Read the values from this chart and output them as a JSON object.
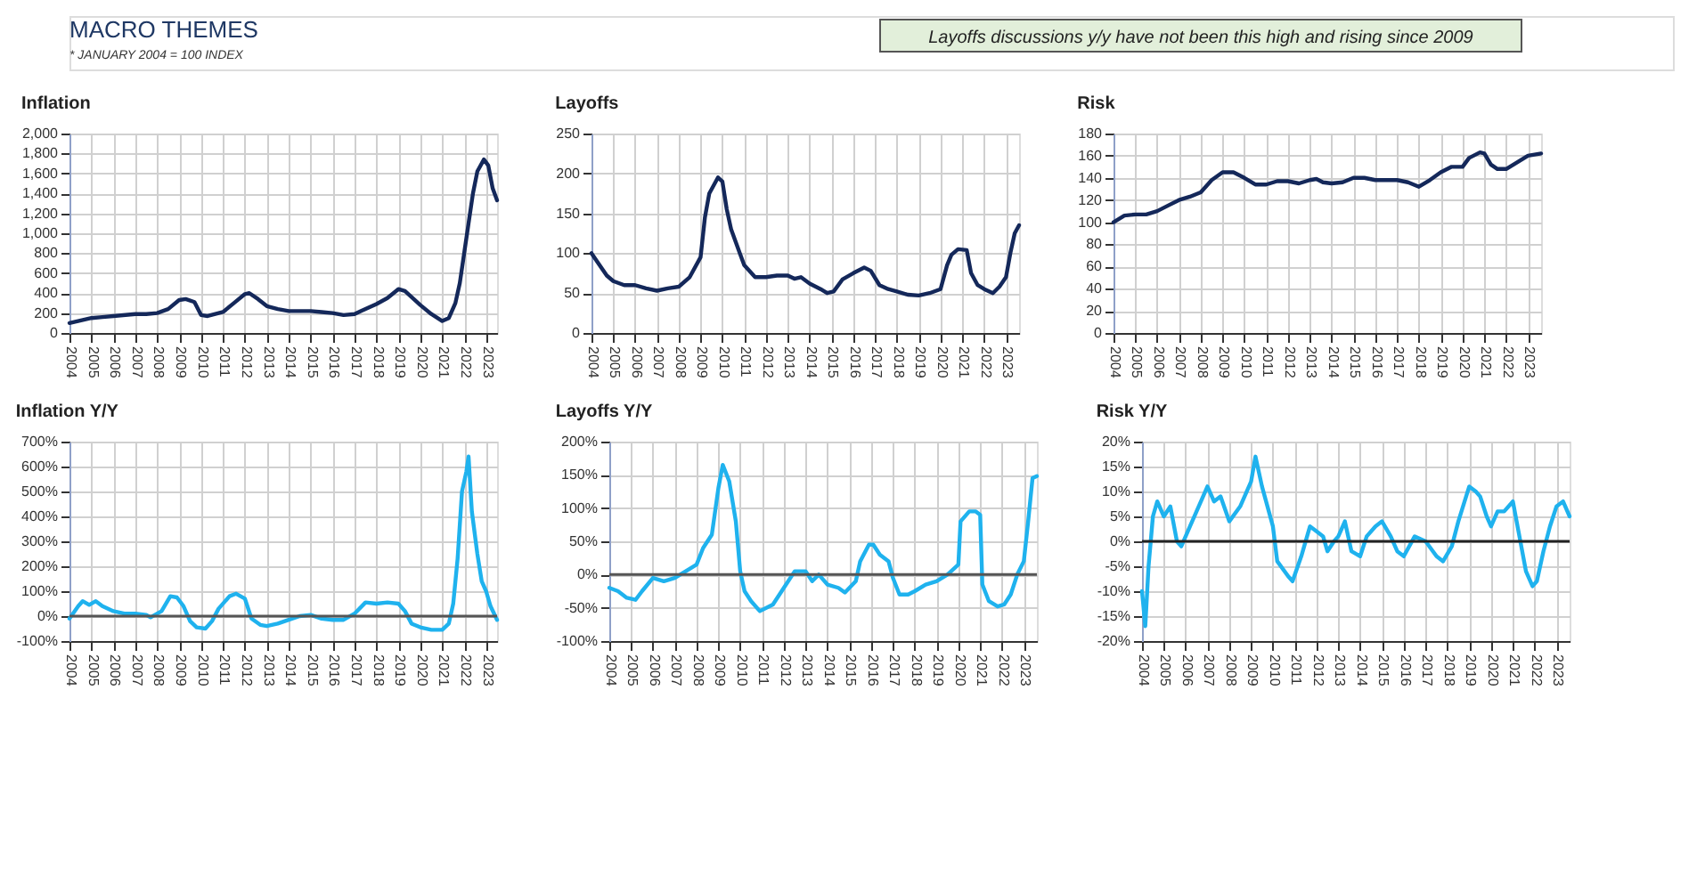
{
  "chart_data": [
    {
      "type": "line",
      "title": "Inflation",
      "annotations": [
        "MACRO THEMES",
        "* JANUARY 2004 = 100 INDEX"
      ],
      "xlim": [
        2004,
        2023.5
      ],
      "xticks": [
        2004,
        2005,
        2006,
        2007,
        2008,
        2009,
        2010,
        2011,
        2012,
        2013,
        2014,
        2015,
        2016,
        2017,
        2018,
        2019,
        2020,
        2021,
        2022,
        2023
      ],
      "ylim": [
        0,
        2000
      ],
      "yticks": [
        0,
        200,
        400,
        600,
        800,
        {
          "value": 1000,
          "label": "1,000"
        },
        {
          "value": 1200,
          "label": "1,200"
        },
        {
          "value": 1400,
          "label": "1,400"
        },
        {
          "value": 1600,
          "label": "1,600"
        },
        {
          "value": 1800,
          "label": "1,800"
        },
        {
          "value": 2000,
          "label": "2,000"
        }
      ],
      "grid": true,
      "series": [
        {
          "color": "#14285a",
          "x": [
            2004,
            2005,
            2005.5,
            2006,
            2007,
            2007.5,
            2008,
            2008.5,
            2009,
            2009.3,
            2009.7,
            2010,
            2010.3,
            2011,
            2011.5,
            2012,
            2012.2,
            2012.6,
            2013,
            2013.5,
            2014,
            2015,
            2015.5,
            2016,
            2016.5,
            2017,
            2017.3,
            2018,
            2018.5,
            2019,
            2019.3,
            2019.7,
            2020,
            2020.5,
            2021,
            2021.3,
            2021.6,
            2021.8,
            2022,
            2022.2,
            2022.4,
            2022.6,
            2022.9,
            2023.1,
            2023.3,
            2023.5
          ],
          "values": [
            100,
            150,
            160,
            170,
            190,
            190,
            200,
            240,
            330,
            340,
            310,
            180,
            170,
            210,
            300,
            390,
            400,
            340,
            270,
            240,
            220,
            220,
            210,
            200,
            180,
            190,
            220,
            290,
            350,
            440,
            420,
            340,
            280,
            190,
            120,
            150,
            300,
            500,
            800,
            1100,
            1400,
            1620,
            1740,
            1680,
            1450,
            1330
          ]
        }
      ]
    },
    {
      "type": "line",
      "title": "Layoffs",
      "xlim": [
        2004,
        2023.6
      ],
      "xticks": [
        2004,
        2005,
        2006,
        2007,
        2008,
        2009,
        2010,
        2011,
        2012,
        2013,
        2014,
        2015,
        2016,
        2017,
        2018,
        2019,
        2020,
        2021,
        2022,
        2023
      ],
      "ylim": [
        0,
        250
      ],
      "yticks": [
        0,
        50,
        100,
        150,
        200,
        250
      ],
      "grid": true,
      "series": [
        {
          "color": "#14285a",
          "x": [
            2004,
            2004.3,
            2004.7,
            2005,
            2005.5,
            2006,
            2006.5,
            2007,
            2007.5,
            2008,
            2008.5,
            2009,
            2009.2,
            2009.4,
            2009.8,
            2010,
            2010.2,
            2010.4,
            2010.8,
            2011,
            2011.5,
            2012,
            2012.5,
            2013,
            2013.3,
            2013.6,
            2014,
            2014.5,
            2014.8,
            2015.1,
            2015.5,
            2016,
            2016.5,
            2016.8,
            2017.2,
            2017.6,
            2018,
            2018.5,
            2019,
            2019.5,
            2020,
            2020.3,
            2020.5,
            2020.8,
            2021.2,
            2021.4,
            2021.7,
            2022,
            2022.4,
            2022.7,
            2023,
            2023.2,
            2023.4,
            2023.6
          ],
          "values": [
            100,
            88,
            72,
            65,
            60,
            60,
            56,
            53,
            56,
            58,
            70,
            95,
            145,
            175,
            195,
            190,
            155,
            130,
            100,
            85,
            70,
            70,
            72,
            72,
            68,
            70,
            62,
            55,
            50,
            52,
            67,
            75,
            82,
            78,
            60,
            55,
            52,
            48,
            47,
            50,
            55,
            85,
            98,
            105,
            104,
            75,
            60,
            55,
            50,
            58,
            70,
            100,
            125,
            135
          ]
        }
      ]
    },
    {
      "type": "line",
      "title": "Risk",
      "xlim": [
        2004,
        2023.6
      ],
      "xticks": [
        2004,
        2005,
        2006,
        2007,
        2008,
        2009,
        2010,
        2011,
        2012,
        2013,
        2014,
        2015,
        2016,
        2017,
        2018,
        2019,
        2020,
        2021,
        2022,
        2023
      ],
      "ylim": [
        0,
        180
      ],
      "yticks": [
        0,
        20,
        40,
        60,
        80,
        100,
        120,
        140,
        160,
        180
      ],
      "grid": true,
      "series": [
        {
          "color": "#14285a",
          "x": [
            2004,
            2004.5,
            2005,
            2005.5,
            2006,
            2006.5,
            2007,
            2007.5,
            2008,
            2008.5,
            2009,
            2009.5,
            2010,
            2010.5,
            2011,
            2011.5,
            2012,
            2012.5,
            2013,
            2013.3,
            2013.6,
            2014,
            2014.5,
            2015,
            2015.5,
            2016,
            2016.5,
            2017,
            2017.5,
            2018,
            2018.5,
            2019,
            2019.5,
            2020,
            2020.3,
            2020.8,
            2021,
            2021.3,
            2021.6,
            2022,
            2022.5,
            2023,
            2023.6
          ],
          "values": [
            100,
            106,
            107,
            107,
            110,
            115,
            120,
            123,
            127,
            138,
            145,
            145,
            140,
            134,
            134,
            137,
            137,
            135,
            138,
            139,
            136,
            135,
            136,
            140,
            140,
            138,
            138,
            138,
            136,
            132,
            138,
            145,
            150,
            150,
            158,
            163,
            162,
            152,
            148,
            148,
            154,
            160,
            162
          ]
        }
      ]
    },
    {
      "type": "line",
      "title": "Inflation Y/Y",
      "xlim": [
        2004,
        2023.5
      ],
      "xticks": [
        2004,
        2005,
        2006,
        2007,
        2008,
        2009,
        2010,
        2011,
        2012,
        2013,
        2014,
        2015,
        2016,
        2017,
        2018,
        2019,
        2020,
        2021,
        2022,
        2023
      ],
      "ylim": [
        -100,
        700
      ],
      "yticks": [
        {
          "value": -100,
          "label": "-100%"
        },
        {
          "value": 0,
          "label": "0%"
        },
        {
          "value": 100,
          "label": "100%"
        },
        {
          "value": 200,
          "label": "200%"
        },
        {
          "value": 300,
          "label": "300%"
        },
        {
          "value": 400,
          "label": "400%"
        },
        {
          "value": 500,
          "label": "500%"
        },
        {
          "value": 600,
          "label": "600%"
        },
        {
          "value": 700,
          "label": "700%"
        }
      ],
      "grid": true,
      "ref_lines": [
        {
          "axis": "y",
          "value": 0,
          "color": "#555555"
        }
      ],
      "series": [
        {
          "color": "#1fb2ee",
          "x": [
            2004,
            2004.4,
            2004.6,
            2004.9,
            2005.2,
            2005.5,
            2006,
            2006.5,
            2007,
            2007.5,
            2007.7,
            2008.2,
            2008.6,
            2008.9,
            2009.2,
            2009.5,
            2009.8,
            2010.2,
            2010.5,
            2010.8,
            2011.3,
            2011.6,
            2012,
            2012.3,
            2012.7,
            2013,
            2013.5,
            2014,
            2014.5,
            2015,
            2015.5,
            2016,
            2016.5,
            2017,
            2017.5,
            2018,
            2018.5,
            2019,
            2019.3,
            2019.6,
            2020,
            2020.5,
            2021,
            2021.3,
            2021.5,
            2021.7,
            2021.9,
            2022.1,
            2022.2,
            2022.35,
            2022.6,
            2022.8,
            2023,
            2023.2,
            2023.5
          ],
          "values": [
            -10,
            40,
            60,
            45,
            60,
            40,
            20,
            10,
            10,
            5,
            -5,
            20,
            80,
            75,
            40,
            -20,
            -45,
            -50,
            -20,
            30,
            80,
            90,
            70,
            -10,
            -35,
            -40,
            -30,
            -15,
            0,
            5,
            -10,
            -15,
            -15,
            10,
            55,
            50,
            55,
            50,
            20,
            -30,
            -45,
            -55,
            -55,
            -30,
            50,
            230,
            500,
            580,
            640,
            420,
            250,
            140,
            100,
            40,
            -15
          ]
        }
      ]
    },
    {
      "type": "line",
      "title": "Layoffs Y/Y",
      "annotations": [
        "Layoffs discussions y/y have not been this high and rising since 2009"
      ],
      "xlim": [
        2004,
        2023.6
      ],
      "xticks": [
        2004,
        2005,
        2006,
        2007,
        2008,
        2009,
        2010,
        2011,
        2012,
        2013,
        2014,
        2015,
        2016,
        2017,
        2018,
        2019,
        2020,
        2021,
        2022,
        2023
      ],
      "ylim": [
        -100,
        200
      ],
      "yticks": [
        {
          "value": -100,
          "label": "-100%"
        },
        {
          "value": -50,
          "label": "-50%"
        },
        {
          "value": 0,
          "label": "0%"
        },
        {
          "value": 50,
          "label": "50%"
        },
        {
          "value": 100,
          "label": "100%"
        },
        {
          "value": 150,
          "label": "150%"
        },
        {
          "value": 200,
          "label": "200%"
        }
      ],
      "grid": true,
      "ref_lines": [
        {
          "axis": "y",
          "value": 0,
          "color": "#555555"
        }
      ],
      "series": [
        {
          "color": "#1fb2ee",
          "x": [
            2004,
            2004.4,
            2004.8,
            2005.2,
            2005.5,
            2006,
            2006.5,
            2007,
            2007.5,
            2008,
            2008.3,
            2008.7,
            2009,
            2009.2,
            2009.5,
            2009.8,
            2010,
            2010.2,
            2010.5,
            2010.9,
            2011.5,
            2012,
            2012.5,
            2013,
            2013.3,
            2013.6,
            2014,
            2014.5,
            2014.8,
            2015.3,
            2015.5,
            2015.9,
            2016.1,
            2016.4,
            2016.8,
            2017,
            2017.3,
            2017.7,
            2018,
            2018.5,
            2019,
            2019.5,
            2020,
            2020.1,
            2020.5,
            2020.8,
            2021,
            2021.1,
            2021.4,
            2021.8,
            2022.1,
            2022.4,
            2022.7,
            2023,
            2023.2,
            2023.4,
            2023.6
          ],
          "values": [
            -20,
            -25,
            -35,
            -38,
            -25,
            -5,
            -10,
            -5,
            5,
            15,
            40,
            60,
            130,
            165,
            140,
            80,
            5,
            -25,
            -40,
            -55,
            -45,
            -20,
            5,
            5,
            -10,
            0,
            -15,
            -20,
            -27,
            -10,
            20,
            45,
            45,
            30,
            20,
            -5,
            -30,
            -30,
            -25,
            -15,
            -10,
            0,
            15,
            80,
            95,
            95,
            90,
            -15,
            -40,
            -48,
            -45,
            -30,
            0,
            20,
            80,
            145,
            148
          ]
        }
      ]
    },
    {
      "type": "line",
      "title": "Risk Y/Y",
      "xlim": [
        2004,
        2023.6
      ],
      "xticks": [
        2004,
        2005,
        2006,
        2007,
        2008,
        2009,
        2010,
        2011,
        2012,
        2013,
        2014,
        2015,
        2016,
        2017,
        2018,
        2019,
        2020,
        2021,
        2022,
        2023
      ],
      "ylim": [
        -20,
        20
      ],
      "yticks": [
        {
          "value": -20,
          "label": "-20%"
        },
        {
          "value": -15,
          "label": "-15%"
        },
        {
          "value": -10,
          "label": "-10%"
        },
        {
          "value": -5,
          "label": "-5%"
        },
        {
          "value": 0,
          "label": "0%"
        },
        {
          "value": 5,
          "label": "5%"
        },
        {
          "value": 10,
          "label": "10%"
        },
        {
          "value": 15,
          "label": "15%"
        },
        {
          "value": 20,
          "label": "20%"
        }
      ],
      "grid": true,
      "ref_lines": [
        {
          "axis": "y",
          "value": 0,
          "color": "#222222"
        }
      ],
      "series": [
        {
          "color": "#1fb2ee",
          "x": [
            2004,
            2004.15,
            2004.3,
            2004.5,
            2004.7,
            2005,
            2005.3,
            2005.6,
            2005.8,
            2006.2,
            2006.5,
            2007,
            2007.3,
            2007.6,
            2008,
            2008.5,
            2009,
            2009.2,
            2009.5,
            2010,
            2010.2,
            2010.7,
            2010.9,
            2011.3,
            2011.7,
            2012,
            2012.3,
            2012.5,
            2012.8,
            2013,
            2013.3,
            2013.6,
            2014,
            2014.3,
            2014.7,
            2015,
            2015.4,
            2015.7,
            2016,
            2016.5,
            2017,
            2017.5,
            2017.8,
            2018.2,
            2018.5,
            2019,
            2019.3,
            2019.5,
            2019.8,
            2020,
            2020.3,
            2020.6,
            2021,
            2021.3,
            2021.6,
            2021.9,
            2022.1,
            2022.4,
            2022.7,
            2023,
            2023.3,
            2023.6
          ],
          "values": [
            -10,
            -17,
            -5,
            5,
            8,
            5,
            7,
            0,
            -1,
            3,
            6,
            11,
            8,
            9,
            4,
            7,
            12,
            17,
            11,
            3,
            -4,
            -7,
            -8,
            -3,
            3,
            2,
            1,
            -2,
            0,
            1,
            4,
            -2,
            -3,
            1,
            3,
            4,
            1,
            -2,
            -3,
            1,
            0,
            -3,
            -4,
            -1,
            4,
            11,
            10,
            9,
            5,
            3,
            6,
            6,
            8,
            1,
            -6,
            -9,
            -8,
            -2,
            3,
            7,
            8,
            5
          ]
        }
      ]
    }
  ]
}
